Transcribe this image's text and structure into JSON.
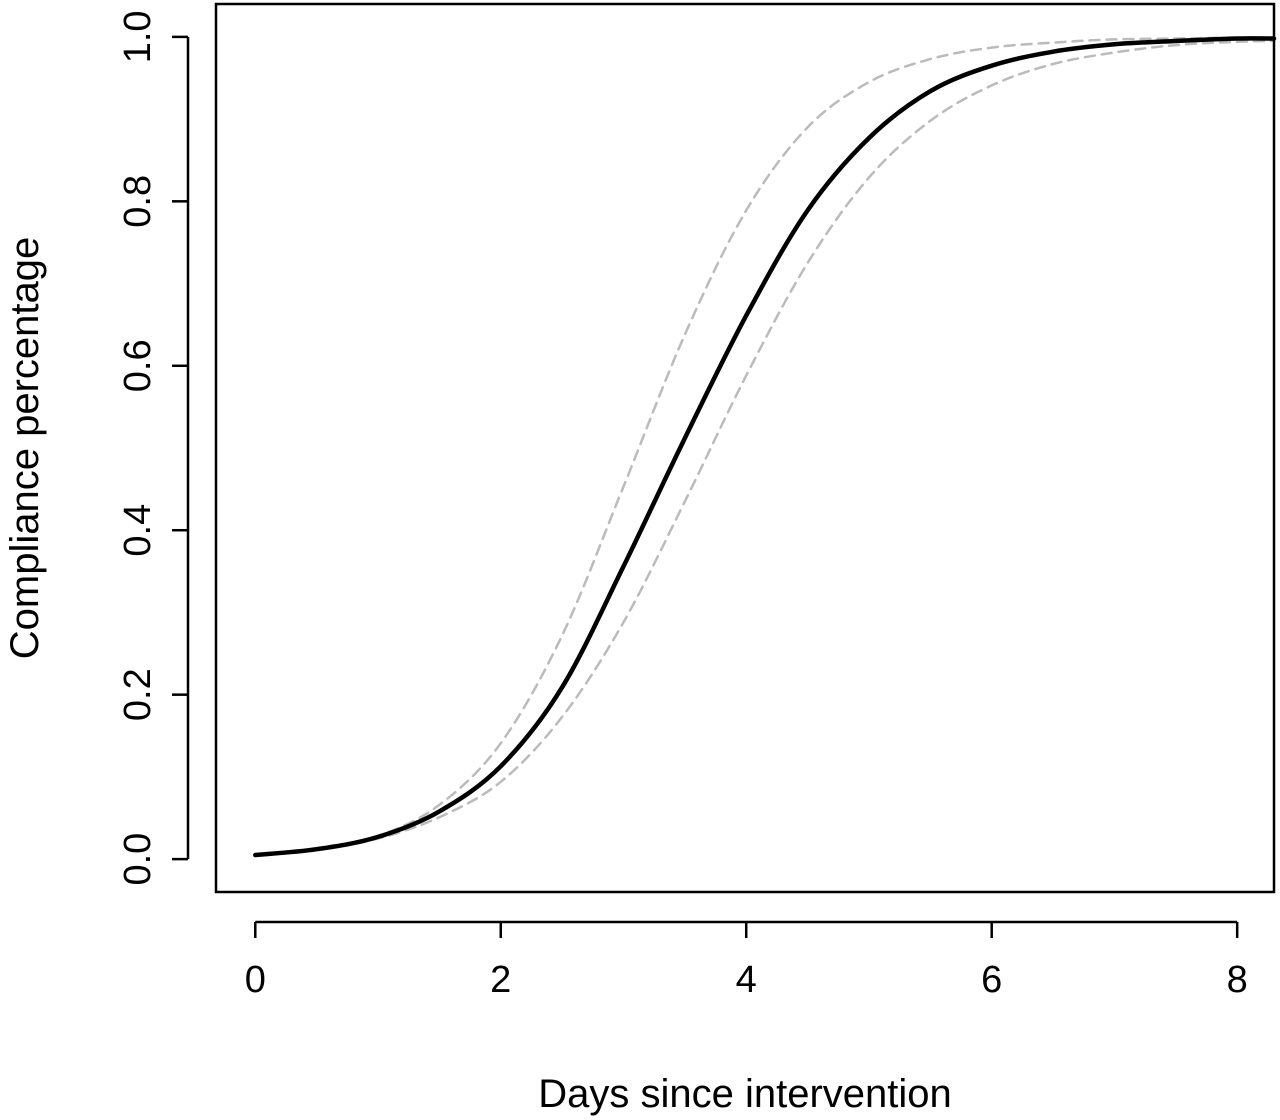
{
  "chart_data": {
    "type": "line",
    "xlabel": "Days since intervention",
    "ylabel": "Compliance percentage",
    "xlim": [
      -0.32,
      8.3
    ],
    "ylim": [
      -0.04,
      1.04
    ],
    "x_ticks": [
      0,
      2,
      4,
      6,
      8
    ],
    "y_ticks": [
      0.0,
      0.2,
      0.4,
      0.6,
      0.8,
      1.0
    ],
    "x_tick_labels": [
      "0",
      "2",
      "4",
      "6",
      "8"
    ],
    "y_tick_labels": [
      "0.0",
      "0.2",
      "0.4",
      "0.6",
      "0.8",
      "1.0"
    ],
    "grid": false,
    "legend": "none",
    "x": [
      0,
      0.5,
      1,
      1.5,
      2,
      2.5,
      3,
      3.5,
      4,
      4.5,
      5,
      5.5,
      6,
      6.5,
      7,
      7.5,
      8,
      8.3
    ],
    "series": [
      {
        "style": "solid",
        "color": "#000000",
        "values": [
          0.005,
          0.012,
          0.027,
          0.058,
          0.113,
          0.209,
          0.356,
          0.512,
          0.661,
          0.789,
          0.877,
          0.934,
          0.965,
          0.982,
          0.991,
          0.995,
          0.998,
          0.998
        ]
      },
      {
        "style": "dashed",
        "color": "#bbbbbb",
        "values": [
          0.005,
          0.012,
          0.028,
          0.066,
          0.141,
          0.272,
          0.453,
          0.638,
          0.789,
          0.89,
          0.945,
          0.973,
          0.987,
          0.993,
          0.997,
          0.998,
          0.999,
          0.999
        ]
      },
      {
        "style": "dashed",
        "color": "#bbbbbb",
        "values": [
          0.005,
          0.011,
          0.025,
          0.051,
          0.094,
          0.173,
          0.288,
          0.435,
          0.588,
          0.725,
          0.829,
          0.898,
          0.941,
          0.967,
          0.981,
          0.99,
          0.994,
          0.995
        ]
      }
    ]
  }
}
